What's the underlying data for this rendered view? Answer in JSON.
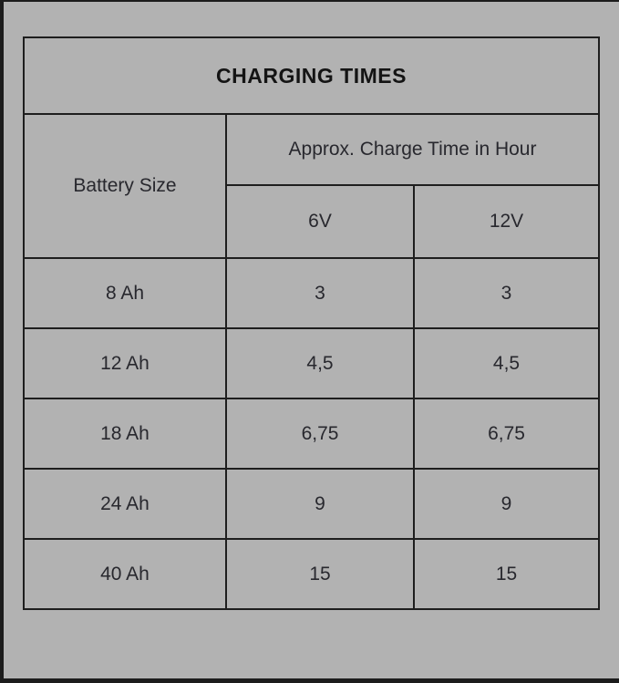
{
  "page": {
    "background_color": "#b2b2b2",
    "edge_color": "#1c1c1c"
  },
  "table": {
    "title": "CHARGING TIMES",
    "border_color": "#1e1e1e",
    "header": {
      "battery_size": "Battery Size",
      "charge_time": "Approx. Charge Time in Hour",
      "columns": [
        "6V",
        "12V"
      ]
    },
    "rows": [
      {
        "battery_size": "8 Ah",
        "v6": "3",
        "v12": "3"
      },
      {
        "battery_size": "12 Ah",
        "v6": "4,5",
        "v12": "4,5"
      },
      {
        "battery_size": "18 Ah",
        "v6": "6,75",
        "v12": "6,75"
      },
      {
        "battery_size": "24 Ah",
        "v6": "9",
        "v12": "9"
      },
      {
        "battery_size": "40 Ah",
        "v6": "15",
        "v12": "15"
      }
    ]
  }
}
